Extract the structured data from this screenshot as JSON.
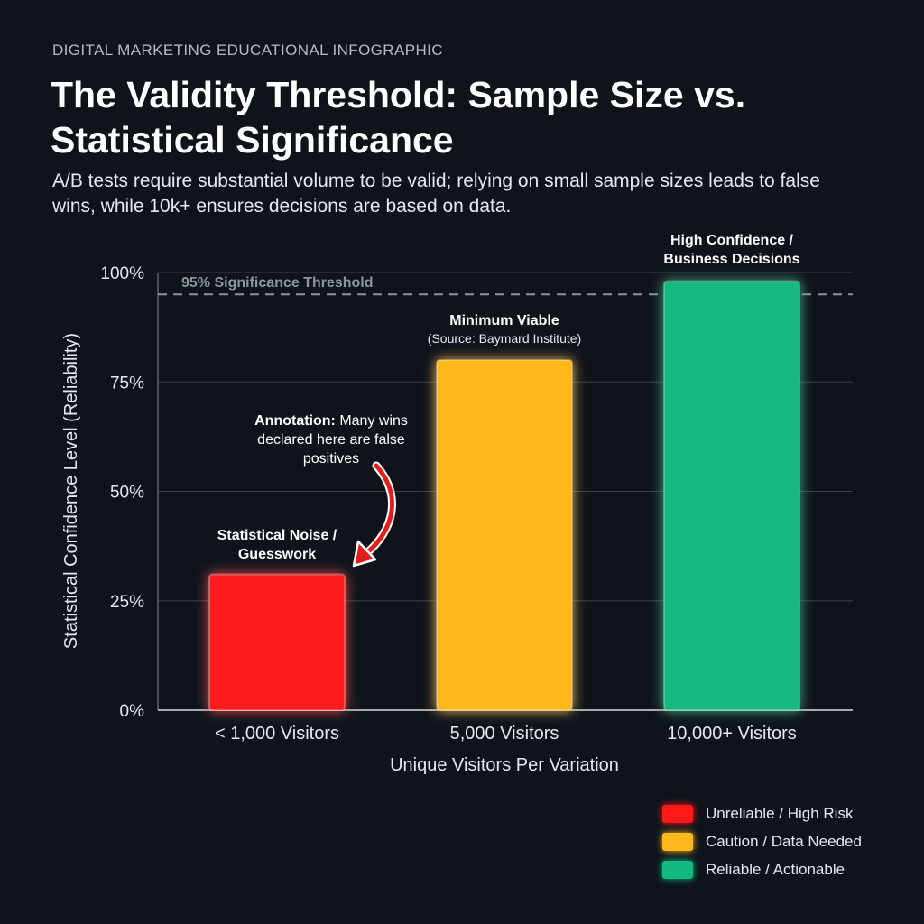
{
  "header": {
    "kicker": "DIGITAL MARKETING EDUCATIONAL INFOGRAPHIC",
    "title": "The Validity Threshold: Sample Size vs. Statistical Significance",
    "subtitle": "A/B tests require substantial volume to be valid; relying on small sample sizes leads to false wins, while 10k+ ensures decisions are based on data."
  },
  "colors": {
    "background": "#0f141b",
    "red": "#ff1a1a",
    "amber": "#ffb81c",
    "green": "#12b981",
    "threshold": "#8c939c",
    "grid": "#3a4048"
  },
  "chart_data": {
    "type": "bar",
    "categories": [
      "< 1,000 Visitors",
      "5,000 Visitors",
      "10,000+ Visitors"
    ],
    "values": [
      31,
      80,
      98
    ],
    "bar_colors": [
      "#ff1a1a",
      "#ffb81c",
      "#12b981"
    ],
    "xlabel": "Unique Visitors Per Variation",
    "ylabel": "Statistical Confidence Level (Reliability)",
    "ylim": [
      0,
      100
    ],
    "yticks": [
      {
        "value": 0,
        "label": "0%"
      },
      {
        "value": 25,
        "label": "25%"
      },
      {
        "value": 50,
        "label": "50%"
      },
      {
        "value": 75,
        "label": "75%"
      },
      {
        "value": 100,
        "label": "100%"
      }
    ],
    "grid": true,
    "threshold": {
      "value": 95,
      "label": "95% Significance Threshold"
    },
    "bar_labels": [
      {
        "lines": [
          "Statistical Noise /",
          "Guesswork"
        ]
      },
      {
        "lines": [
          "Minimum Viable"
        ],
        "source": "(Source: Baymard Institute)"
      },
      {
        "lines": [
          "High Confidence /",
          "Business Decisions"
        ]
      }
    ],
    "annotation": {
      "bold": "Annotation:",
      "lines": [
        "Many wins",
        "declared here are false",
        "positives"
      ]
    },
    "legend_position": "bottom-right",
    "legend": [
      {
        "label": "Unreliable / High Risk",
        "color": "#ff1a1a"
      },
      {
        "label": "Caution / Data Needed",
        "color": "#ffb81c"
      },
      {
        "label": "Reliable / Actionable",
        "color": "#12b981"
      }
    ]
  }
}
